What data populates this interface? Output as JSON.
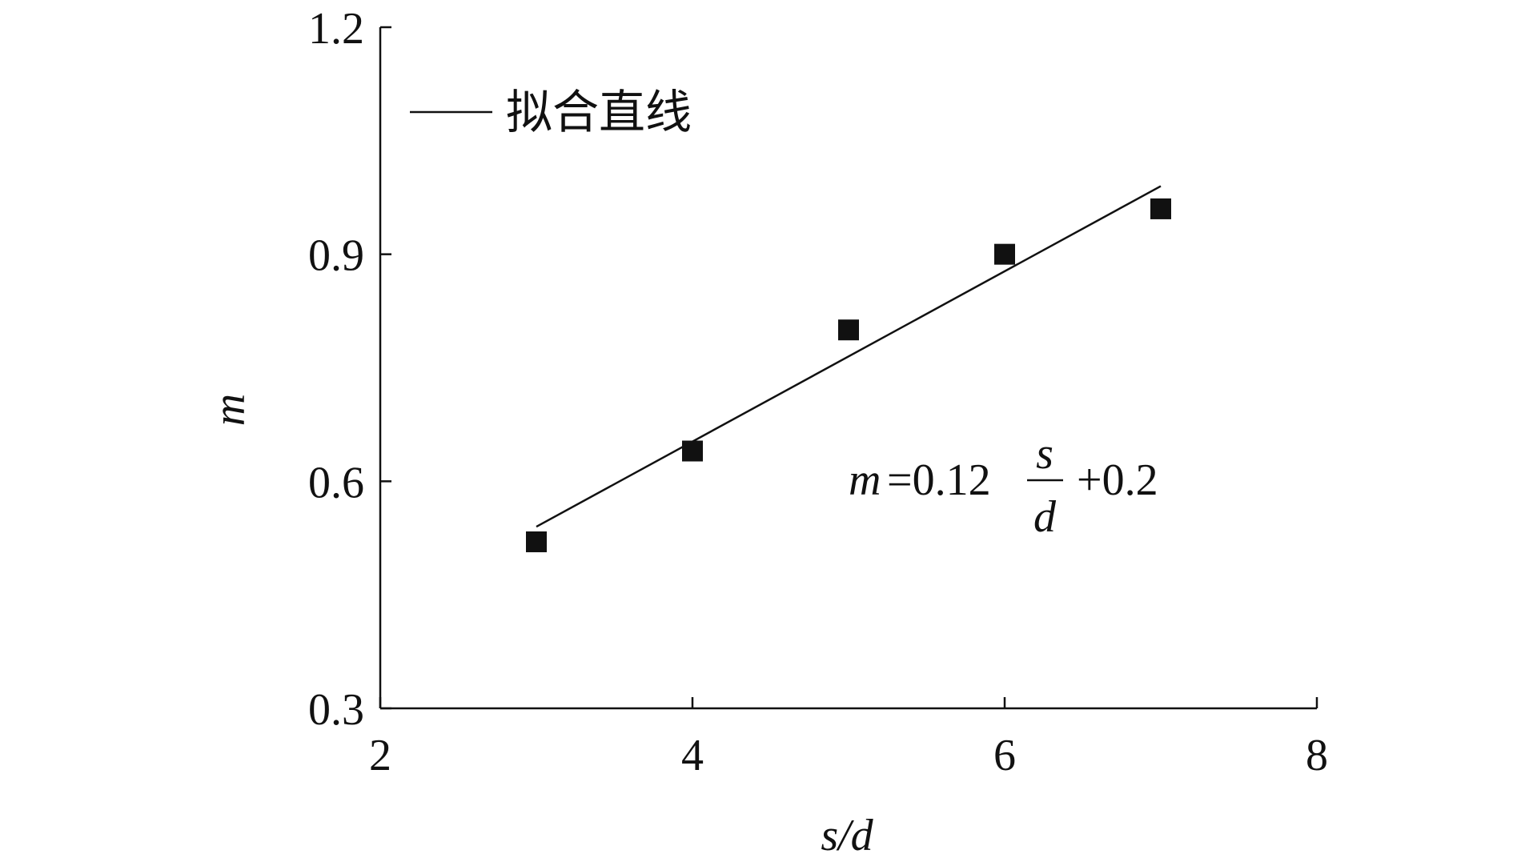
{
  "chart_data": {
    "type": "scatter",
    "title": "",
    "xlabel": "s/d",
    "ylabel": "m",
    "xlim": [
      2,
      8
    ],
    "ylim": [
      0.3,
      1.2
    ],
    "xticks": [
      "2",
      "4",
      "6",
      "8"
    ],
    "yticks": [
      "0.3",
      "0.6",
      "0.9",
      "1.2"
    ],
    "grid": false,
    "legend": {
      "placement": "top-left",
      "entries": [
        "拟合直线"
      ]
    },
    "series": [
      {
        "marker": "square",
        "color": "#111111",
        "x": [
          3,
          4,
          5,
          6,
          7
        ],
        "y": [
          0.52,
          0.64,
          0.8,
          0.9,
          0.96
        ]
      }
    ],
    "fit_line": {
      "name": "拟合直线",
      "x": [
        3,
        7
      ],
      "y": [
        0.54,
        0.99
      ],
      "color": "#111111"
    },
    "annotation": {
      "lhs": "m",
      "eq": "=0.12",
      "num": "s",
      "den": "d",
      "rhs": "+0.2"
    }
  }
}
